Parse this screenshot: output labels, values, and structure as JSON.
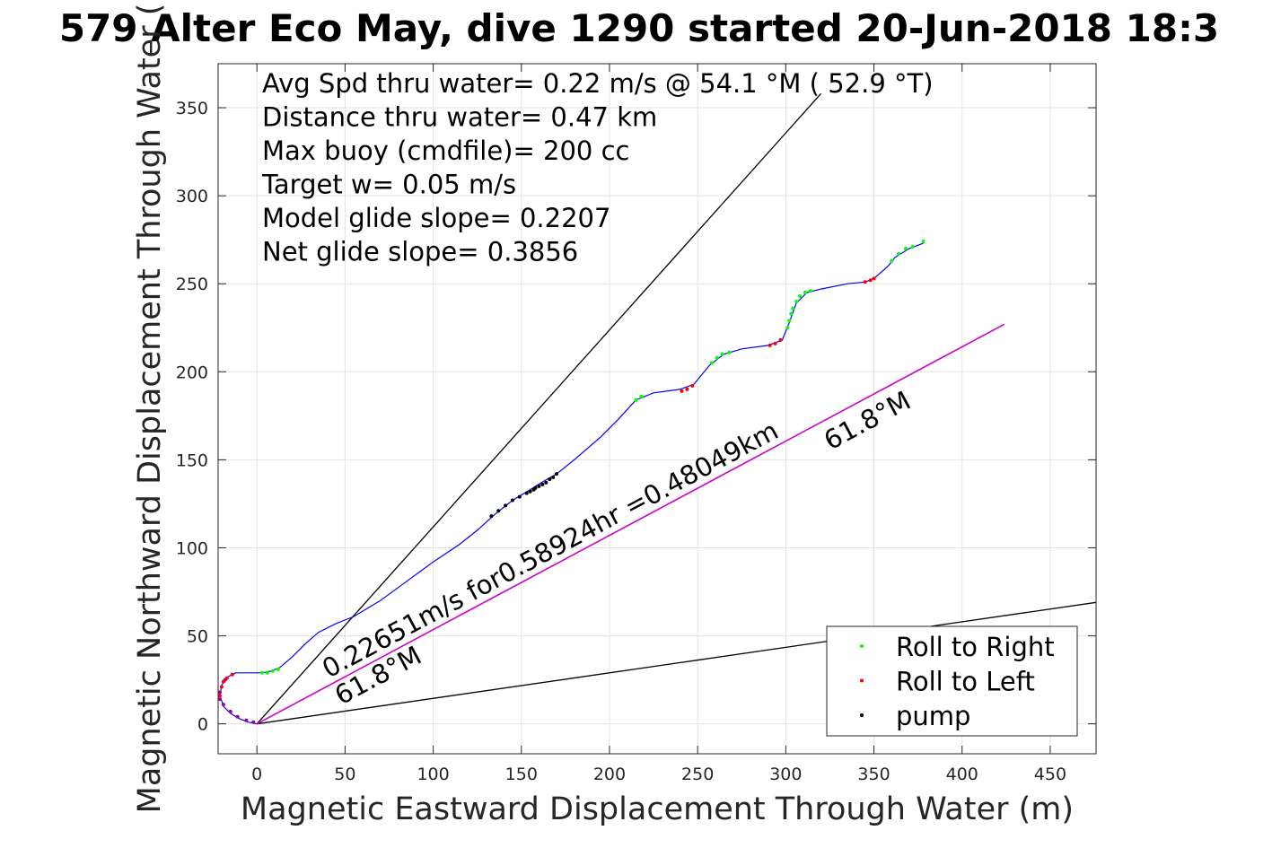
{
  "chart_data": {
    "type": "line",
    "title": "579 Alter Eco May, dive 1290 started 20-Jun-2018 18:3",
    "xlabel": "Magnetic Eastward Displacement Through Water (m)",
    "ylabel": "Magnetic Northward Displacement Through Water (",
    "xlim": [
      -22,
      476
    ],
    "ylim": [
      -17,
      375
    ],
    "xticks": [
      0,
      50,
      100,
      150,
      200,
      250,
      300,
      350,
      400,
      450
    ],
    "yticks": [
      0,
      50,
      100,
      150,
      200,
      250,
      300,
      350
    ],
    "grid": true,
    "info_lines": [
      "Avg Spd thru water=  0.22 m/s @  54.1 °M ( 52.9 °T)",
      "Distance thru water=  0.47 km",
      "Max buoy (cmdfile)= 200 cc",
      "Target w= 0.05 m/s",
      "Model glide slope= 0.2207",
      "Net glide slope= 0.3856"
    ],
    "annotations": {
      "speed_label": "0.22651m/s for0.58924hr =0.48049km",
      "heading_label_start": "61.8°M",
      "heading_label_end": "61.8°M"
    },
    "legend_position": "bottom-right",
    "legend": [
      {
        "name": "Roll to Right",
        "color": "#00ff00"
      },
      {
        "name": "Roll to Left",
        "color": "#ff0000"
      },
      {
        "name": "pump",
        "color": "#000000"
      }
    ],
    "colors": {
      "track": "#0000ff",
      "heading_line": "#cc00cc",
      "guide_lines": "#000000"
    },
    "guide_lines": [
      {
        "points": [
          [
            0,
            0
          ],
          [
            320,
            358
          ]
        ]
      },
      {
        "points": [
          [
            0,
            0
          ],
          [
            476,
            69
          ]
        ]
      }
    ],
    "heading_line": {
      "points": [
        [
          0,
          0
        ],
        [
          424,
          227
        ]
      ]
    },
    "track": [
      [
        0,
        0
      ],
      [
        -5,
        1
      ],
      [
        -10,
        3
      ],
      [
        -15,
        6
      ],
      [
        -19,
        10
      ],
      [
        -21,
        16
      ],
      [
        -20,
        22
      ],
      [
        -16,
        27
      ],
      [
        -12,
        29
      ],
      [
        -5,
        29
      ],
      [
        3,
        29
      ],
      [
        8,
        30
      ],
      [
        13,
        32
      ],
      [
        20,
        38
      ],
      [
        28,
        46
      ],
      [
        35,
        52
      ],
      [
        45,
        57
      ],
      [
        55,
        61
      ],
      [
        70,
        70
      ],
      [
        85,
        81
      ],
      [
        100,
        92
      ],
      [
        115,
        102
      ],
      [
        125,
        110
      ],
      [
        135,
        119
      ],
      [
        145,
        127
      ],
      [
        155,
        133
      ],
      [
        163,
        138
      ],
      [
        170,
        142
      ],
      [
        180,
        150
      ],
      [
        195,
        163
      ],
      [
        205,
        173
      ],
      [
        215,
        184
      ],
      [
        225,
        188
      ],
      [
        240,
        190
      ],
      [
        248,
        193
      ],
      [
        257,
        204
      ],
      [
        265,
        210
      ],
      [
        275,
        213
      ],
      [
        290,
        215
      ],
      [
        298,
        218
      ],
      [
        302,
        228
      ],
      [
        306,
        239
      ],
      [
        312,
        245
      ],
      [
        320,
        247
      ],
      [
        335,
        250
      ],
      [
        345,
        251
      ],
      [
        350,
        253
      ],
      [
        358,
        260
      ],
      [
        362,
        265
      ],
      [
        370,
        270
      ],
      [
        378,
        273
      ]
    ],
    "roll_right_points": [
      [
        3,
        29
      ],
      [
        6,
        29
      ],
      [
        9,
        30
      ],
      [
        12,
        31
      ],
      [
        215,
        184
      ],
      [
        218,
        186
      ],
      [
        258,
        205
      ],
      [
        261,
        208
      ],
      [
        264,
        210
      ],
      [
        268,
        211
      ],
      [
        301,
        225
      ],
      [
        302,
        229
      ],
      [
        303,
        233
      ],
      [
        304,
        236
      ],
      [
        306,
        240
      ],
      [
        308,
        243
      ],
      [
        311,
        245
      ],
      [
        314,
        246
      ],
      [
        360,
        263
      ],
      [
        364,
        267
      ],
      [
        368,
        270
      ],
      [
        372,
        271
      ],
      [
        378,
        274
      ]
    ],
    "roll_left_points": [
      [
        -21,
        16
      ],
      [
        -20,
        21
      ],
      [
        -19,
        24
      ],
      [
        -17,
        26
      ],
      [
        -14,
        28
      ],
      [
        241,
        189
      ],
      [
        244,
        190
      ],
      [
        247,
        192
      ],
      [
        291,
        215
      ],
      [
        294,
        216
      ],
      [
        297,
        218
      ],
      [
        345,
        251
      ],
      [
        348,
        252
      ],
      [
        350,
        253
      ]
    ],
    "pump_points": [
      [
        133,
        118
      ],
      [
        137,
        121
      ],
      [
        141,
        124
      ],
      [
        145,
        127
      ],
      [
        149,
        129
      ],
      [
        153,
        131
      ],
      [
        155,
        132
      ],
      [
        157,
        133
      ],
      [
        158,
        134
      ],
      [
        160,
        135
      ],
      [
        162,
        136
      ],
      [
        164,
        137
      ],
      [
        166,
        139
      ],
      [
        168,
        140
      ],
      [
        170,
        142
      ]
    ],
    "depth_dots": [
      [
        -2,
        1
      ],
      [
        -6,
        2
      ],
      [
        -11,
        4
      ],
      [
        -15,
        7
      ],
      [
        -19,
        11
      ],
      [
        -21,
        14
      ],
      [
        -21,
        18
      ],
      [
        -18,
        25
      ]
    ]
  }
}
